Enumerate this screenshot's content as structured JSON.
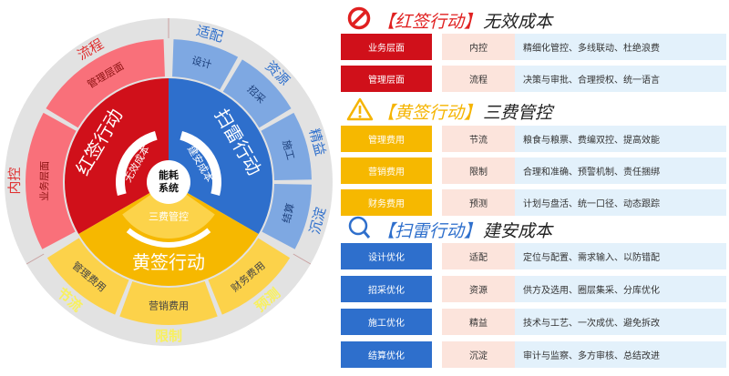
{
  "colors": {
    "red": "#d0101a",
    "red_light": "#f9707a",
    "yellow": "#f6b800",
    "yellow_light": "#fcd24a",
    "blue": "#2e6fcc",
    "blue_light": "#7ea8e2",
    "gray": "#e2e2e2",
    "pink": "#fce4dc",
    "lightblue": "#e3f1fb"
  },
  "wheel": {
    "center": "能耗系统",
    "red": {
      "title": "红签行动",
      "sub": "无效成本",
      "segments": [
        "业务层面",
        "管理层面"
      ],
      "outer": [
        "内控",
        "流程"
      ]
    },
    "blue": {
      "title": "扫雷行动",
      "sub": "建安成本",
      "segments": [
        "设计",
        "招采",
        "施工",
        "结算"
      ],
      "outer": [
        "适配",
        "资源",
        "精益",
        "沉淀"
      ]
    },
    "yellow": {
      "title": "黄签行动",
      "sub": "三费管控",
      "segments": [
        "财务费用",
        "营销费用",
        "管理费用"
      ],
      "outer": [
        "预测",
        "限制",
        "节流"
      ]
    }
  },
  "sections": [
    {
      "icon": "prohibited-icon",
      "tag": "【红签行动】",
      "title": "无效成本",
      "color": "#d0101a",
      "tag_color": "#e02020",
      "rows": [
        {
          "k": "业务层面",
          "m": "内控",
          "d": "精细化管控、多线联动、杜绝浪费"
        },
        {
          "k": "管理层面",
          "m": "流程",
          "d": "决策与审批、合理授权、统一语言"
        }
      ]
    },
    {
      "icon": "warning-icon",
      "tag": "【黄签行动】",
      "title": "三费管控",
      "color": "#f6b800",
      "tag_color": "#f5b400",
      "rows": [
        {
          "k": "管理费用",
          "m": "节流",
          "d": "粮食与粮票、费编双控、提高效能"
        },
        {
          "k": "营销费用",
          "m": "限制",
          "d": "合理和准确、预警机制、责任捆绑"
        },
        {
          "k": "财务费用",
          "m": "预测",
          "d": "计划与盘活、统一口径、动态跟踪"
        }
      ]
    },
    {
      "icon": "search-icon",
      "tag": "【扫雷行动】",
      "title": "建安成本",
      "color": "#2e6fcc",
      "tag_color": "#2e6fcc",
      "rows": [
        {
          "k": "设计优化",
          "m": "适配",
          "d": "定位与配置、需求输入、以防错配"
        },
        {
          "k": "招采优化",
          "m": "资源",
          "d": "供方及选用、圈层集采、分库优化"
        },
        {
          "k": "施工优化",
          "m": "精益",
          "d": "技术与工艺、一次成优、避免拆改"
        },
        {
          "k": "结算优化",
          "m": "沉淀",
          "d": "审计与监察、多方审核、总结改进"
        }
      ]
    }
  ]
}
